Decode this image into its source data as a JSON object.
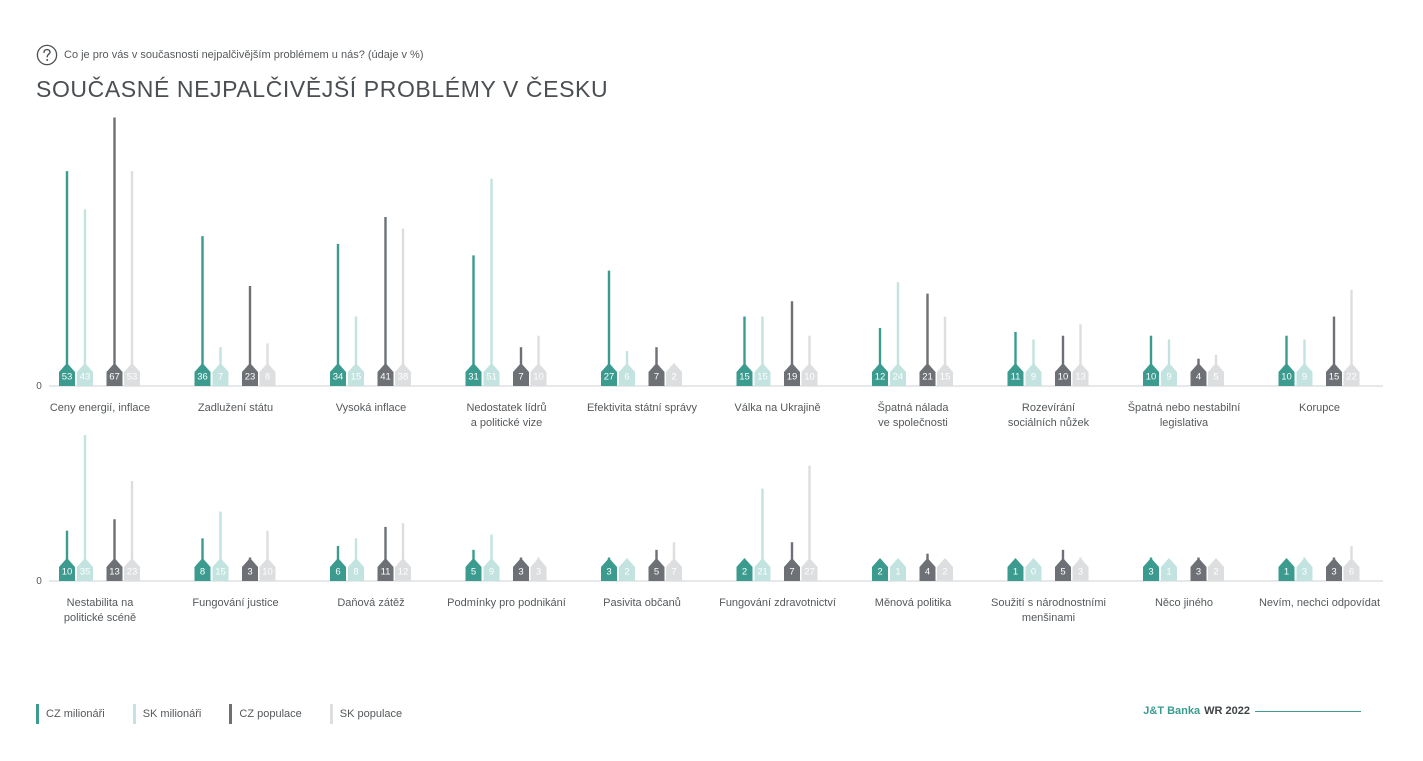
{
  "question": {
    "text": "Co je pro vás v současnosti nejpalčivějším problémem u nás? (údaje v %)",
    "icon": "question-circle-icon"
  },
  "title": "SOUČASNÉ NEJPALČIVĚJŠÍ PROBLÉMY V ČESKU",
  "legend": [
    {
      "label": "CZ milionáři",
      "color": "#3a9b8e"
    },
    {
      "label": "SK milionáři",
      "color": "#c2e3df"
    },
    {
      "label": "CZ populace",
      "color": "#6d7175"
    },
    {
      "label": "SK populace",
      "color": "#dcdee0"
    }
  ],
  "brand": {
    "name": "J&T Banka",
    "report": "WR 2022"
  },
  "chart_data": {
    "type": "bar",
    "zero_label": "0",
    "series_names": [
      "CZ milionáři",
      "SK milionáři",
      "CZ populace",
      "SK populace"
    ],
    "colors": [
      "#3a9b8e",
      "#c2e3df",
      "#6d7175",
      "#dcdee0"
    ],
    "ylim": [
      0,
      70
    ],
    "grid": false,
    "rows": [
      {
        "categories": [
          {
            "label": [
              "Ceny energií, inflace"
            ],
            "values": [
              53,
              43,
              67,
              53
            ]
          },
          {
            "label": [
              "Zadlužení státu"
            ],
            "values": [
              36,
              7,
              23,
              8
            ]
          },
          {
            "label": [
              "Vysoká inflace"
            ],
            "values": [
              34,
              15,
              41,
              38
            ]
          },
          {
            "label": [
              "Nedostatek lídrů",
              "a politické vize"
            ],
            "values": [
              31,
              51,
              7,
              10
            ]
          },
          {
            "label": [
              "Efektivita státní správy"
            ],
            "values": [
              27,
              6,
              7,
              2
            ]
          },
          {
            "label": [
              "Válka na Ukrajině"
            ],
            "values": [
              15,
              15,
              19,
              10
            ]
          },
          {
            "label": [
              "Špatná nálada",
              "ve společnosti"
            ],
            "values": [
              12,
              24,
              21,
              15
            ]
          },
          {
            "label": [
              "Rozevírání",
              "sociálních nůžek"
            ],
            "values": [
              11,
              9,
              10,
              13
            ]
          },
          {
            "label": [
              "Špatná nebo nestabilní",
              "legislativa"
            ],
            "values": [
              10,
              9,
              4,
              5
            ]
          },
          {
            "label": [
              "Korupce"
            ],
            "values": [
              10,
              9,
              15,
              22
            ]
          }
        ]
      },
      {
        "categories": [
          {
            "label": [
              "Nestabilita na",
              "politické scéně"
            ],
            "values": [
              10,
              35,
              13,
              23
            ]
          },
          {
            "label": [
              "Fungování justice"
            ],
            "values": [
              8,
              15,
              3,
              10
            ]
          },
          {
            "label": [
              "Daňová zátěž"
            ],
            "values": [
              6,
              8,
              11,
              12
            ]
          },
          {
            "label": [
              "Podmínky pro podnikání"
            ],
            "values": [
              5,
              9,
              3,
              3
            ]
          },
          {
            "label": [
              "Pasivita občanů"
            ],
            "values": [
              3,
              2,
              5,
              7
            ]
          },
          {
            "label": [
              "Fungování zdravotnictví"
            ],
            "values": [
              2,
              21,
              7,
              27
            ]
          },
          {
            "label": [
              "Měnová politika"
            ],
            "values": [
              2,
              1,
              4,
              2
            ]
          },
          {
            "label": [
              "Soužití s národnostními",
              "menšinami"
            ],
            "values": [
              1,
              0,
              5,
              3
            ]
          },
          {
            "label": [
              "Něco jiného"
            ],
            "values": [
              3,
              1,
              3,
              2
            ]
          },
          {
            "label": [
              "Nevím, nechci odpovídat"
            ],
            "values": [
              1,
              3,
              3,
              6
            ]
          }
        ]
      }
    ]
  }
}
